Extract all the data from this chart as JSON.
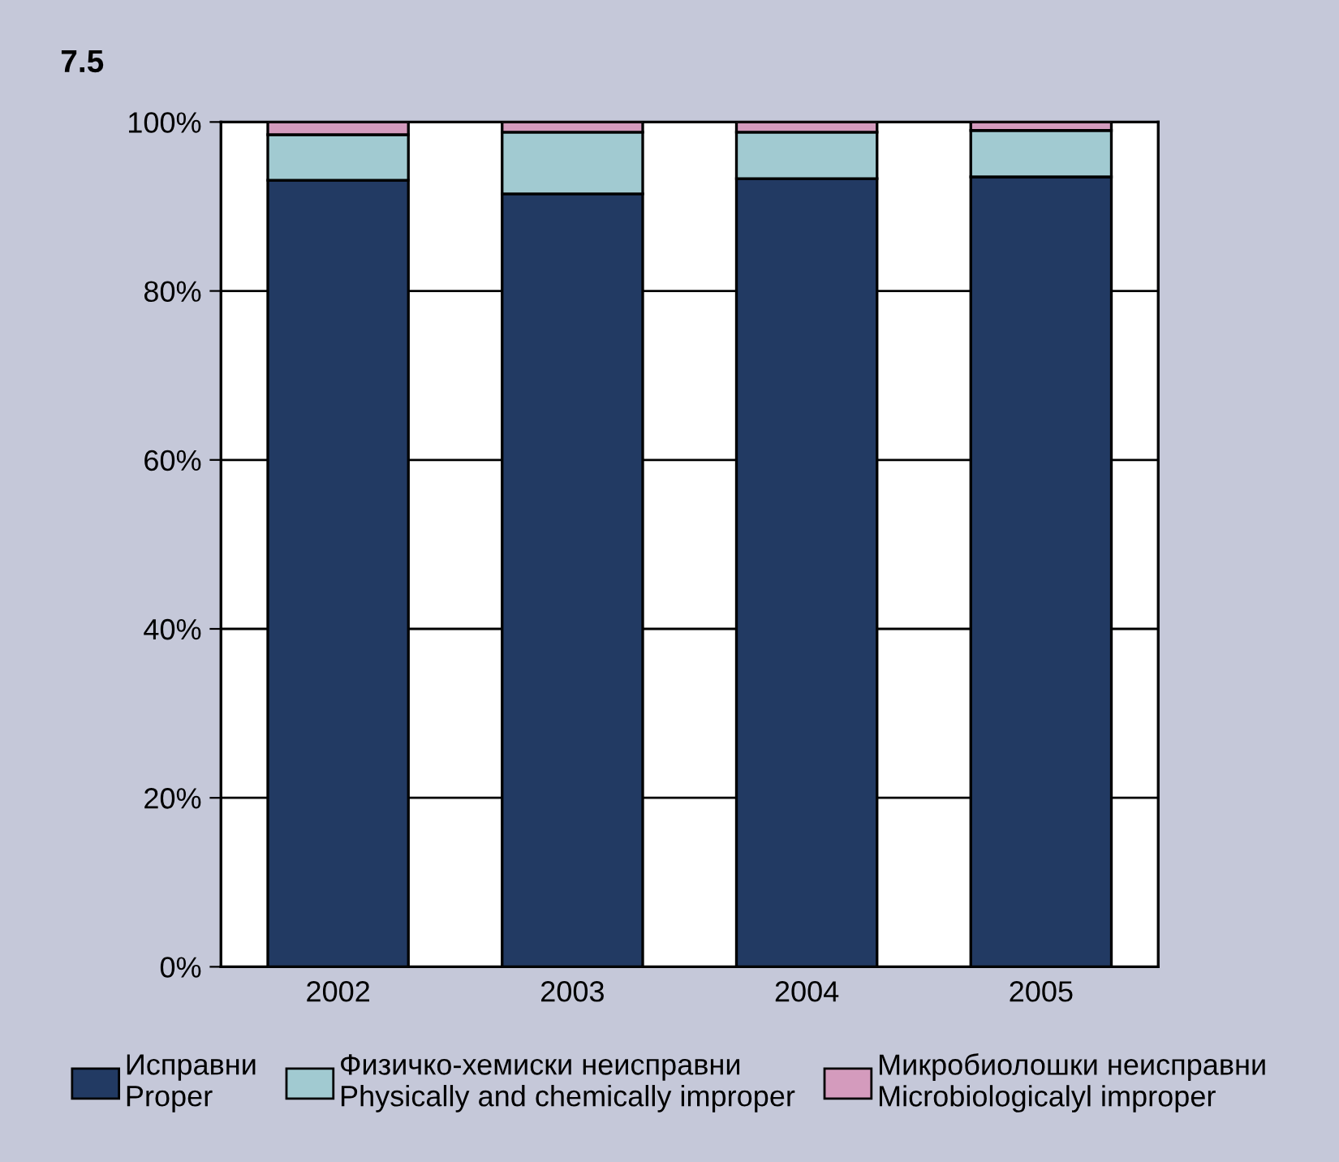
{
  "chart_data": {
    "type": "bar",
    "title": "7.5",
    "categories": [
      "2002",
      "2003",
      "2004",
      "2005"
    ],
    "stacked": true,
    "series": [
      {
        "name": "Исправни\nProper",
        "color": "#223a63",
        "values": [
          93.1,
          91.5,
          93.3,
          93.5
        ]
      },
      {
        "name": "Физичко-хемиски неисправни\nPhysically and chemically improper",
        "color": "#a1cad1",
        "values": [
          5.4,
          7.3,
          5.5,
          5.5
        ]
      },
      {
        "name": "Микробиолошки неисправни\nMicrobiologicalyl improper",
        "color": "#d49bbd",
        "values": [
          1.5,
          1.2,
          1.2,
          1.0
        ]
      }
    ],
    "ylim": [
      0,
      100
    ],
    "yticks": [
      {
        "value": 0,
        "label": "0%"
      },
      {
        "value": 20,
        "label": "20%"
      },
      {
        "value": 40,
        "label": "40%"
      },
      {
        "value": 60,
        "label": "60%"
      },
      {
        "value": 80,
        "label": "80%"
      },
      {
        "value": 100,
        "label": "100%"
      }
    ],
    "grid": "y",
    "legend": "bottom"
  }
}
